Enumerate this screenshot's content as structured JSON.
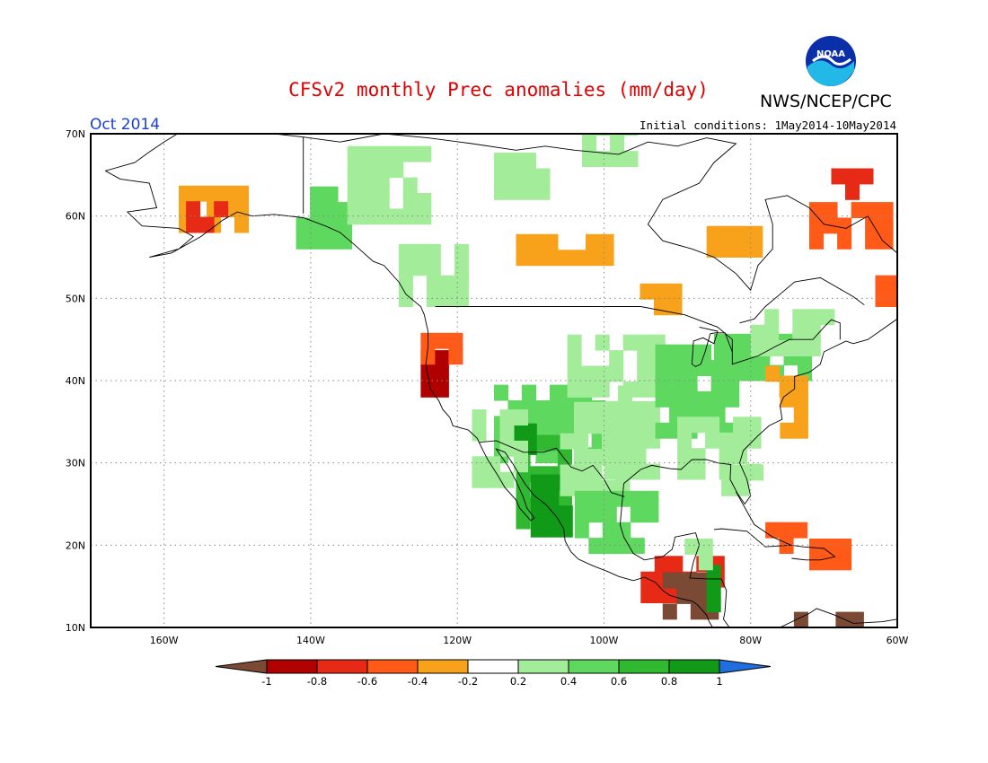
{
  "header": {
    "title": "CFSv2 monthly Prec anomalies (mm/day)",
    "agency": "NWS/NCEP/CPC",
    "month": "Oct 2014",
    "initial_conditions": "Initial conditions: 1May2014-10May2014",
    "logo_text": "NOAA"
  },
  "map": {
    "lat_labels": [
      "70N",
      "60N",
      "50N",
      "40N",
      "30N",
      "20N",
      "10N"
    ],
    "lon_labels": [
      "160W",
      "140W",
      "120W",
      "100W",
      "80W",
      "60W"
    ],
    "lat_range": [
      10,
      70
    ],
    "lon_range": [
      -170,
      -60
    ],
    "grid": "dotted"
  },
  "legend": {
    "labels": [
      "-1",
      "-0.8",
      "-0.6",
      "-0.4",
      "-0.2",
      "0.2",
      "0.4",
      "0.6",
      "0.8",
      "1"
    ],
    "colors": {
      "below_min": "#7a4a35",
      "bins": [
        "#b00000",
        "#e62a16",
        "#ff5a18",
        "#f7a21a",
        "#ffffff",
        "#a3ec9a",
        "#5fd85f",
        "#30b830",
        "#109a18"
      ],
      "above_max": "#1f6fe0"
    }
  }
}
